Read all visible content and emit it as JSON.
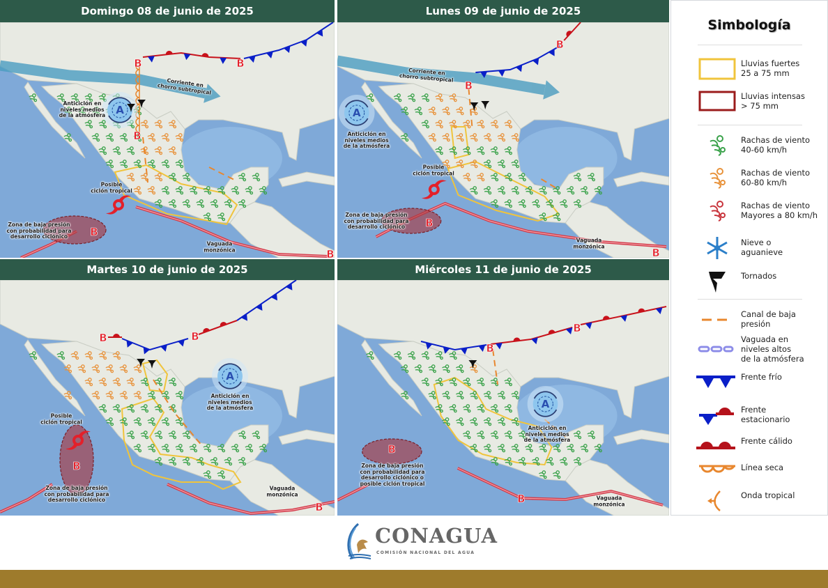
{
  "map_symbols": {
    "high_letter": "A",
    "low_letter": "B"
  },
  "panels": [
    {
      "title": "Domingo 08 de junio de 2025",
      "labels": {
        "anticyclone": "Anticiclón en\nniveles medios\nde la atmósfera",
        "jet": "Corriente en\nchorro subtropical",
        "cyclone": "Posible\nciclón tropical",
        "low_zone": "Zona de baja presión\ncon probabilidad para\ndesarrollo ciclónico",
        "monsoon": "Vaguada\nmonzónica"
      }
    },
    {
      "title": "Lunes 09 de junio de 2025",
      "labels": {
        "jet": "Corriente en\nchorro subtropical",
        "anticyclone": "Anticiclón en\nniveles medios\nde la atmósfera",
        "cyclone": "Posible\nciclón tropical",
        "low_zone": "Zona de baja presión\ncon probabilidad para\ndesarrollo ciclónico",
        "monsoon": "Vaguada\nmonzónica"
      }
    },
    {
      "title": "Martes 10 de junio de 2025",
      "labels": {
        "anticyclone": "Anticiclón en\nniveles medios\nde la atmósfera",
        "cyclone": "Posible\nciclón tropical",
        "low_zone": "Zona de baja presión\ncon probabilidad para\ndesarrollo ciclónico",
        "monsoon": "Vaguada\nmonzónica"
      }
    },
    {
      "title": "Miércoles 11 de junio de 2025",
      "labels": {
        "low_zone": "Zona de baja presión\ncon probabilidad para\ndesarrollo ciclónico o\nposible ciclón tropical",
        "anticyclone": "Anticiclón en\nniveles medios\nde la atmósfera",
        "monsoon": "Vaguada\nmonzónica"
      }
    }
  ],
  "legend": {
    "title": "Simbología",
    "items": [
      {
        "label": "Lluvias fuertes\n25 a 75 mm",
        "icon": "yellow-box",
        "color": "#f0c43c"
      },
      {
        "label": "Lluvias intensas\n> 75 mm",
        "icon": "red-box",
        "color": "#9b1c1c"
      },
      {
        "label": "Rachas de viento\n40-60 km/h",
        "icon": "wind-icon",
        "color": "#3aa24a"
      },
      {
        "label": "Rachas de viento\n60-80 km/h",
        "icon": "wind-icon",
        "color": "#e8923a"
      },
      {
        "label": "Rachas de viento\nMayores a 80 km/h",
        "icon": "wind-icon",
        "color": "#c8343c"
      },
      {
        "label": "Nieve o\naguanieve",
        "icon": "snowflake-icon",
        "color": "#2b7fc9"
      },
      {
        "label": "Tornados",
        "icon": "tornado-icon",
        "color": "#111111"
      },
      {
        "label": "Canal de baja\npresión",
        "icon": "trough-icon",
        "color": "#e8872e"
      },
      {
        "label": "Vaguada en\nniveles altos\nde la atmósfera",
        "icon": "upper-trough-icon",
        "color": "#8c8ce8"
      },
      {
        "label": "Frente frío",
        "icon": "cold-front-icon",
        "color": "#0a1fc8"
      },
      {
        "label": "Frente\nestacionario",
        "icon": "stationary-front-icon"
      },
      {
        "label": "Frente cálido",
        "icon": "warm-front-icon",
        "color": "#b5121b"
      },
      {
        "label": "Línea seca",
        "icon": "dry-line-icon",
        "color": "#e8872e"
      },
      {
        "label": "Onda tropical",
        "icon": "tropical-wave-icon",
        "color": "#e8872e"
      }
    ]
  },
  "logo": {
    "name": "CONAGUA",
    "subtitle": "COMISIÓN NACIONAL DEL AGUA"
  },
  "colors": {
    "header": "#2d5a49",
    "footer_bar": "#9e7b2c",
    "ocean": "#7fa9d8",
    "land": "#e8eae3"
  }
}
